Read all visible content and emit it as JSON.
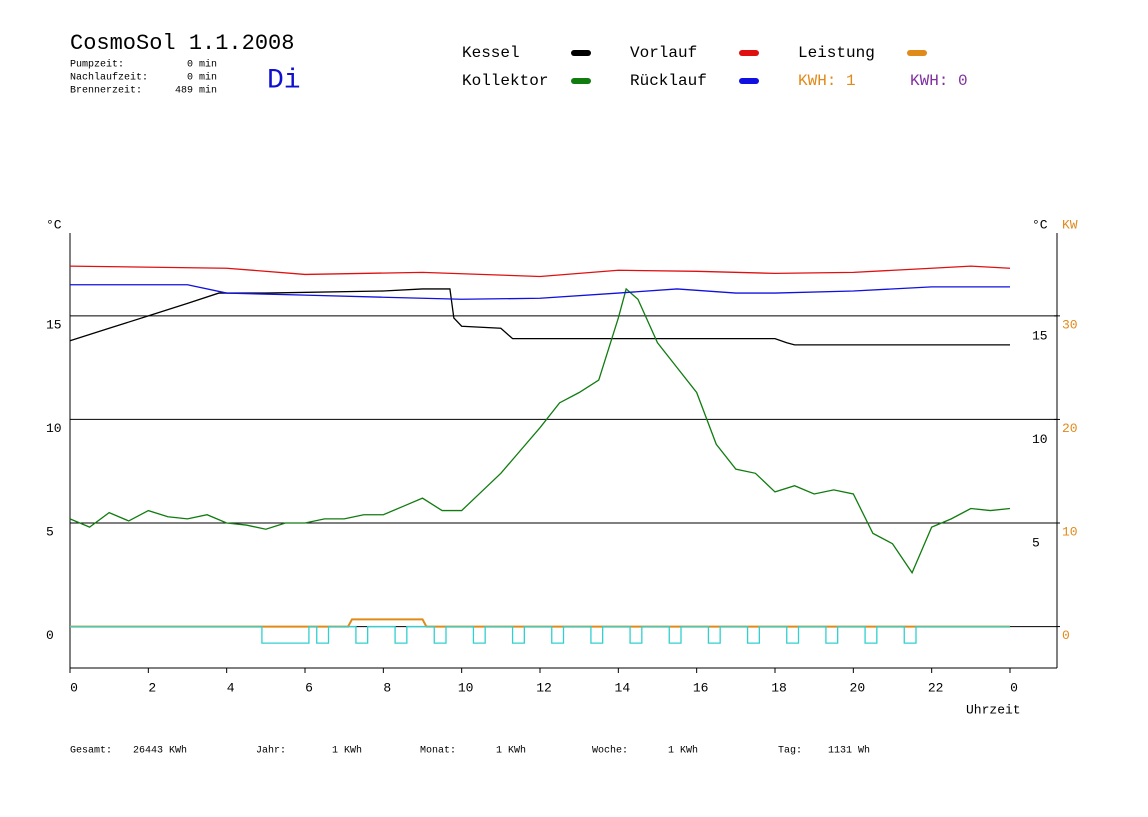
{
  "chart_data": {
    "type": "line",
    "title": "CosmoSol 1.1.2008",
    "day": "Di",
    "status": [
      {
        "label": "Pumpzeit:",
        "value": "0 min"
      },
      {
        "label": "Nachlaufzeit:",
        "value": "0 min"
      },
      {
        "label": "Brennerzeit:",
        "value": "489 min"
      }
    ],
    "y_label": "°C",
    "y2_label": "°C",
    "y2_unit": "KW",
    "x_label": "Uhrzeit",
    "xlim": [
      0,
      25.2
    ],
    "xticks": [
      0,
      2,
      4,
      6,
      8,
      10,
      12,
      14,
      16,
      18,
      20,
      22,
      {
        "value": 24,
        "label": "0"
      }
    ],
    "ylim": [
      -2,
      19
    ],
    "yticks": [
      0,
      5,
      10,
      15
    ],
    "y2lim": [
      -4,
      38
    ],
    "y2ticks": [
      0,
      10,
      20,
      30
    ],
    "y2_color": "#e08a1a",
    "right_yticks": [
      15,
      10,
      5
    ],
    "grid": true,
    "series": [
      {
        "name": "Kessel",
        "color": "#000000",
        "x": [
          0,
          1,
          2,
          3,
          3.8,
          5,
          8,
          9,
          9.7,
          9.8,
          10,
          11,
          11.3,
          18,
          18.3,
          18.5,
          24
        ],
        "values": [
          13.8,
          14.4,
          15.0,
          15.6,
          16.1,
          16.1,
          16.2,
          16.3,
          16.3,
          14.9,
          14.5,
          14.4,
          13.9,
          13.9,
          13.7,
          13.6,
          13.6
        ]
      },
      {
        "name": "Kollektor",
        "color": "#107c10",
        "x": [
          0,
          0.5,
          1,
          1.5,
          2,
          2.5,
          3,
          3.5,
          4,
          4.5,
          5,
          5.5,
          6,
          6.5,
          7,
          7.5,
          8,
          8.5,
          9,
          9.5,
          10,
          10.5,
          11,
          11.5,
          12,
          12.5,
          13,
          13.5,
          14,
          14.2,
          14.5,
          15,
          15.5,
          16,
          16.5,
          17,
          17.5,
          18,
          18.5,
          19,
          19.5,
          20,
          20.5,
          21,
          21.5,
          22,
          22.5,
          23,
          23.5,
          24
        ],
        "values": [
          5.2,
          4.8,
          5.5,
          5.1,
          5.6,
          5.3,
          5.2,
          5.4,
          5.0,
          4.9,
          4.7,
          5.0,
          5.0,
          5.2,
          5.2,
          5.4,
          5.4,
          5.8,
          6.2,
          5.6,
          5.6,
          6.5,
          7.4,
          8.5,
          9.6,
          10.8,
          11.3,
          11.9,
          14.9,
          16.3,
          15.8,
          13.7,
          12.5,
          11.3,
          8.8,
          7.6,
          7.4,
          6.5,
          6.8,
          6.4,
          6.6,
          6.4,
          4.5,
          4.0,
          2.6,
          4.8,
          5.2,
          5.7,
          5.6,
          5.7
        ]
      },
      {
        "name": "Vorlauf",
        "color": "#e01010",
        "x": [
          0,
          4,
          6,
          9,
          12,
          14,
          16,
          18,
          20,
          22,
          23,
          24
        ],
        "values": [
          17.4,
          17.3,
          17.0,
          17.1,
          16.9,
          17.2,
          17.15,
          17.05,
          17.1,
          17.3,
          17.4,
          17.3
        ]
      },
      {
        "name": "Rücklauf",
        "color": "#1010e0",
        "x": [
          0,
          3,
          4,
          6,
          8,
          10,
          12,
          14,
          15.5,
          17,
          18,
          20,
          22,
          24
        ],
        "values": [
          16.5,
          16.5,
          16.1,
          16.0,
          15.9,
          15.8,
          15.85,
          16.1,
          16.3,
          16.1,
          16.1,
          16.2,
          16.4,
          16.4
        ]
      },
      {
        "name": "Leistung",
        "color": "#e08a1a",
        "axis": "y2",
        "x": [
          0,
          7.1,
          7.2,
          9.0,
          9.1,
          24
        ],
        "values": [
          0,
          0,
          0.7,
          0.7,
          0,
          0
        ]
      },
      {
        "color": "#30d0d0",
        "x": [
          0,
          4.9,
          4.9,
          6.1,
          6.1,
          6.3,
          6.3,
          6.6,
          6.6,
          7.3,
          7.3,
          7.6,
          7.6,
          8.3,
          8.3,
          8.6,
          8.6,
          9.3,
          9.3,
          9.6,
          9.6,
          10.3,
          10.3,
          10.6,
          10.6,
          11.3,
          11.3,
          11.6,
          11.6,
          12.3,
          12.3,
          12.6,
          12.6,
          13.3,
          13.3,
          13.6,
          13.6,
          14.3,
          14.3,
          14.6,
          14.6,
          15.3,
          15.3,
          15.6,
          15.6,
          16.3,
          16.3,
          16.6,
          16.6,
          17.3,
          17.3,
          17.6,
          17.6,
          18.3,
          18.3,
          18.6,
          18.6,
          19.3,
          19.3,
          19.6,
          19.6,
          20.3,
          20.3,
          20.6,
          20.6,
          21.3,
          21.3,
          21.6,
          21.6,
          24
        ],
        "values": [
          0,
          0,
          -0.8,
          -0.8,
          0,
          0,
          -0.8,
          -0.8,
          0,
          0,
          -0.8,
          -0.8,
          0,
          0,
          -0.8,
          -0.8,
          0,
          0,
          -0.8,
          -0.8,
          0,
          0,
          -0.8,
          -0.8,
          0,
          0,
          -0.8,
          -0.8,
          0,
          0,
          -0.8,
          -0.8,
          0,
          0,
          -0.8,
          -0.8,
          0,
          0,
          -0.8,
          -0.8,
          0,
          0,
          -0.8,
          -0.8,
          0,
          0,
          -0.8,
          -0.8,
          0,
          0,
          -0.8,
          -0.8,
          0,
          0,
          -0.8,
          -0.8,
          0,
          0,
          -0.8,
          -0.8,
          0,
          0,
          -0.8,
          -0.8,
          0,
          0,
          -0.8,
          -0.8,
          0,
          0
        ]
      }
    ],
    "kwh_labels": [
      {
        "text": "KWH: 1",
        "color": "#e08a1a"
      },
      {
        "text": "KWH: 0",
        "color": "#8030a0"
      }
    ],
    "totals": [
      {
        "label": "Gesamt:",
        "value": "26443 KWh"
      },
      {
        "label": "Jahr:",
        "value": "1 KWh"
      },
      {
        "label": "Monat:",
        "value": "1 KWh"
      },
      {
        "label": "Woche:",
        "value": "1 KWh"
      },
      {
        "label": "Tag:",
        "value": "1131 Wh"
      }
    ]
  }
}
